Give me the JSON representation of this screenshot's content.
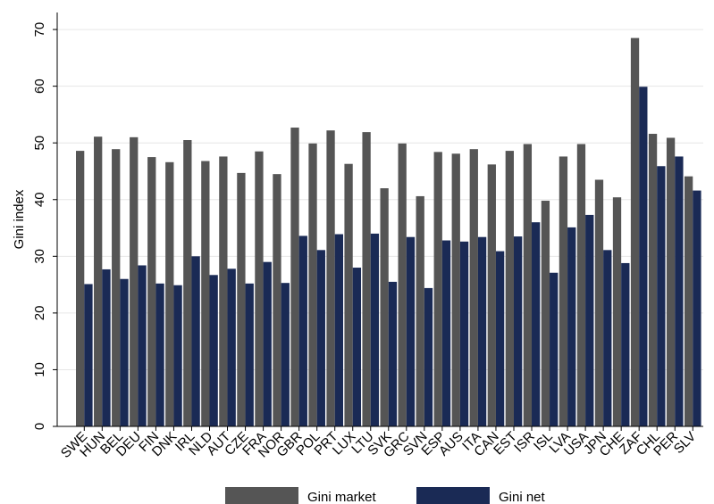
{
  "chart_data": {
    "type": "bar",
    "title": "",
    "xlabel": "",
    "ylabel": "Gini index",
    "ylim": [
      0,
      73
    ],
    "yticks": [
      0,
      10,
      20,
      30,
      40,
      50,
      60,
      70
    ],
    "grid": true,
    "legend_position": "bottom",
    "categories": [
      "SWE",
      "HUN",
      "BEL",
      "DEU",
      "FIN",
      "DNK",
      "IRL",
      "NLD",
      "AUT",
      "CZE",
      "FRA",
      "NOR",
      "GBR",
      "POL",
      "PRT",
      "LUX",
      "LTU",
      "SVK",
      "GRC",
      "SVN",
      "ESP",
      "AUS",
      "ITA",
      "CAN",
      "EST",
      "ISR",
      "ISL",
      "LVA",
      "USA",
      "JPN",
      "CHE",
      "ZAF",
      "CHL",
      "PER",
      "SLV"
    ],
    "series": [
      {
        "name": "Gini market",
        "color": "#555555",
        "values": [
          48.6,
          51.1,
          48.9,
          51.0,
          47.5,
          46.6,
          50.5,
          46.8,
          47.6,
          44.7,
          48.5,
          44.5,
          52.7,
          49.9,
          52.2,
          46.3,
          51.9,
          42.0,
          49.9,
          40.6,
          48.4,
          48.1,
          48.9,
          46.2,
          48.6,
          49.8,
          39.8,
          47.6,
          49.8,
          43.5,
          40.4,
          68.5,
          51.6,
          50.9,
          44.1
        ]
      },
      {
        "name": "Gini net",
        "color": "#1a2a55",
        "values": [
          25.1,
          27.7,
          26.0,
          28.4,
          25.2,
          24.9,
          30.0,
          26.7,
          27.8,
          25.2,
          29.0,
          25.3,
          33.6,
          31.1,
          33.9,
          28.0,
          34.0,
          25.5,
          33.4,
          24.4,
          32.8,
          32.6,
          33.4,
          30.9,
          33.5,
          36.0,
          27.1,
          35.1,
          37.3,
          31.1,
          28.8,
          59.9,
          45.9,
          47.6,
          41.6
        ]
      }
    ]
  }
}
